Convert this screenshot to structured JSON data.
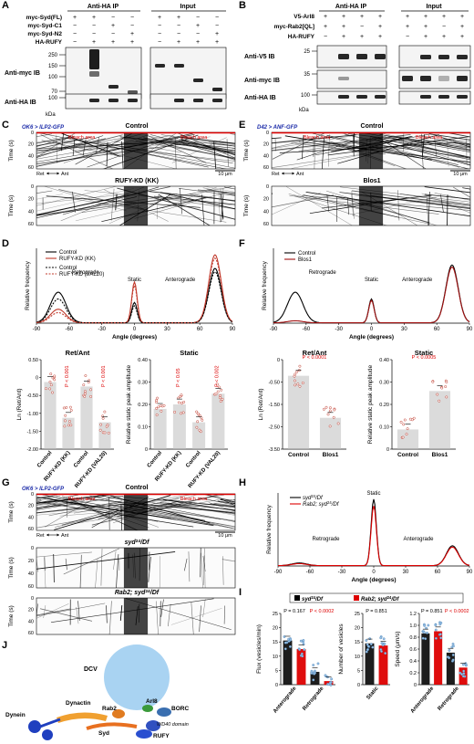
{
  "A": {
    "label": "A",
    "ip": "Anti-HA IP",
    "input": "Input",
    "rows": [
      {
        "name": "myc-Syd(FL)",
        "signs": [
          "+",
          "+",
          "−",
          "−",
          "+",
          "+",
          "−",
          "−"
        ]
      },
      {
        "name": "myc-Syd-C1",
        "signs": [
          "−",
          "−",
          "+",
          "−",
          "−",
          "−",
          "+",
          "−"
        ]
      },
      {
        "name": "myc-Syd-N2",
        "signs": [
          "−",
          "−",
          "−",
          "+",
          "−",
          "−",
          "−",
          "+"
        ]
      },
      {
        "name": "HA-RUFY",
        "signs": [
          "−",
          "+",
          "+",
          "+",
          "−",
          "+",
          "+",
          "+"
        ]
      }
    ],
    "blots": [
      "Anti-myc IB",
      "Anti-HA IB"
    ],
    "mw_myc": [
      "250",
      "150",
      "100",
      "70"
    ],
    "mw_ha": [
      "100"
    ],
    "kda": "kDa"
  },
  "B": {
    "label": "B",
    "ip": "Anti-HA IP",
    "input": "Input",
    "rows": [
      {
        "name": "V5-Arl8",
        "signs": [
          "+",
          "+",
          "+",
          "+",
          "+",
          "+",
          "+",
          "+"
        ]
      },
      {
        "name": "myc-Rab2[QL]",
        "signs": [
          "+",
          "+",
          "−",
          "+",
          "+",
          "+",
          "−",
          "+"
        ]
      },
      {
        "name": "HA-RUFY",
        "signs": [
          "−",
          "+",
          "+",
          "+",
          "−",
          "+",
          "+",
          "+"
        ]
      }
    ],
    "blots": [
      "Anti-V5 IB",
      "Anti-myc IB",
      "Anti-HA IB"
    ],
    "mw": [
      "25",
      "35",
      "100"
    ],
    "kda": "kDa"
  },
  "C": {
    "label": "C",
    "genotype": "OK6 > ILP2-GFP",
    "titles": [
      "Control",
      "RUFY-KD (KK)"
    ],
    "bleach": "Bleach area",
    "time": "Time (s)",
    "tticks": [
      "0",
      "20",
      "40",
      "60"
    ],
    "ret": "Ret",
    "ant": "Ant",
    "scale": "10 μm"
  },
  "D": {
    "label": "D",
    "legend": [
      "Control",
      "RUFY-KD (KK)",
      "Control",
      "RUFY-KD (VAL20)"
    ],
    "ylabel": "Relative frequency",
    "xlabel": "Angle (degrees)",
    "xticks": [
      "-90",
      "-60",
      "-30",
      "0",
      "30",
      "60",
      "90"
    ],
    "regions": [
      "Retrograde",
      "Static",
      "Anterograde"
    ],
    "ret_ant": {
      "title": "Ret/Ant",
      "ylabel": "Ln (Ret/Ant)",
      "yticks": [
        "0.50",
        "0",
        "-0.50",
        "-1.00",
        "-1.50",
        "-2.00"
      ],
      "categories": [
        "Control",
        "RUFY-KD (KK)",
        "Control",
        "RUFY-KD (VAL20)"
      ],
      "p": [
        "P < 0.001",
        "P < 0.001"
      ]
    },
    "static": {
      "title": "Static",
      "ylabel": "Relative static peak amplitude",
      "yticks": [
        "0",
        "0.10",
        "0.20",
        "0.30",
        "0.40"
      ],
      "categories": [
        "Control",
        "RUFY-KD (KK)",
        "Control",
        "RUFY-KD (VAL20)"
      ],
      "p": [
        "P < 0.05",
        "P < 0.002"
      ]
    }
  },
  "E": {
    "label": "E",
    "genotype": "D42 > ANF-GFP",
    "titles": [
      "Control",
      "Blos1"
    ],
    "bleach": "Bleach area",
    "time": "Time (s)",
    "tticks": [
      "0",
      "20",
      "40",
      "60"
    ],
    "ret": "Ret",
    "ant": "Ant",
    "scale": "10 μm"
  },
  "F": {
    "label": "F",
    "legend": [
      "Control",
      "Blos1"
    ],
    "ylabel": "Relative frequency",
    "xlabel": "Angle (degrees)",
    "xticks": [
      "-90",
      "-60",
      "-30",
      "0",
      "30",
      "60",
      "90"
    ],
    "regions": [
      "Retrograde",
      "Static",
      "Anterograde"
    ],
    "ret_ant": {
      "title": "Ret/Ant",
      "ylabel": "Ln (Ret/Ant)",
      "yticks": [
        "0",
        "-0.50",
        "-1.50",
        "-2.50",
        "-3.50"
      ],
      "categories": [
        "Control",
        "Blos1"
      ],
      "p": [
        "P < 0.0001"
      ]
    },
    "static": {
      "title": "Static",
      "ylabel": "Relative static peak amplitude",
      "yticks": [
        "0",
        "0.10",
        "0.20",
        "0.30",
        "0.40"
      ],
      "categories": [
        "Control",
        "Blos1"
      ],
      "p": [
        "P < 0.0005"
      ]
    }
  },
  "G": {
    "label": "G",
    "genotype": "OK6 > ILP2-GFP",
    "titles": [
      [
        "Control"
      ],
      [
        "syd",
        "24",
        "/Df"
      ],
      [
        "Rab2; syd",
        "24",
        "/Df"
      ]
    ],
    "bleach": "Bleach area",
    "time": "Time (s)",
    "tticks": [
      "0",
      "20",
      "40",
      "60"
    ],
    "ret": "Ret",
    "ant": "Ant",
    "scale": "10 μm"
  },
  "H": {
    "label": "H",
    "legend": [
      [
        "syd",
        "24",
        "/Df"
      ],
      [
        "Rab2; syd",
        "24",
        "/Df"
      ]
    ],
    "ylabel": "Relative frequency",
    "xlabel": "Angle (degrees)",
    "xticks": [
      "-90",
      "-60",
      "-30",
      "0",
      "30",
      "60",
      "90"
    ],
    "regions": [
      "Retrograde",
      "Static",
      "Anterograde"
    ]
  },
  "I": {
    "label": "I",
    "legend": [
      [
        "syd",
        "24",
        "/Df"
      ],
      [
        "Rab2; syd",
        "24",
        "/Df"
      ]
    ],
    "flux": {
      "ylabel": "Flux (vesicles/min)",
      "yticks": [
        "0",
        "5",
        "10",
        "15",
        "20",
        "25"
      ],
      "categories": [
        "Anterograde",
        "Retrograde"
      ],
      "p": [
        "P = 0.167",
        "P < 0.0002"
      ]
    },
    "number": {
      "ylabel": "Number of vesicles",
      "yticks": [
        "0",
        "5",
        "10",
        "15",
        "20",
        "25"
      ],
      "categories": [
        "Static"
      ],
      "p": [
        "P = 0.851"
      ]
    },
    "speed": {
      "ylabel": "Speed (μm/s)",
      "yticks": [
        "0",
        "0.2",
        "0.4",
        "0.6",
        "0.8",
        "1.0",
        "1.2"
      ],
      "categories": [
        "Anterograde",
        "Retrograde"
      ],
      "p": [
        "P = 0.851",
        "P < 0.0002"
      ]
    }
  },
  "J": {
    "label": "J",
    "parts": [
      "DCV",
      "Arl8",
      "BORC",
      "Rab2",
      "Dynactin",
      "WD40 domain",
      "Syd",
      "RUFY",
      "Dynein"
    ]
  }
}
